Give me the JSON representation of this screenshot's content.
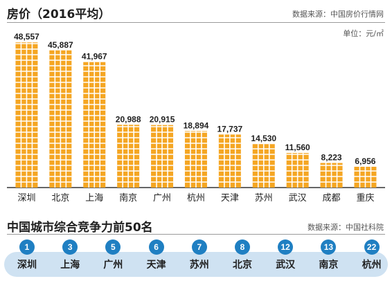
{
  "section1": {
    "title": "房价（2016平均）",
    "source": "数据来源：中国房价行情网",
    "unit": "单位：元/㎡"
  },
  "chart_data": {
    "type": "bar",
    "title": "房价（2016平均）",
    "categories": [
      "深圳",
      "北京",
      "上海",
      "南京",
      "广州",
      "杭州",
      "天津",
      "苏州",
      "武汉",
      "成都",
      "重庆"
    ],
    "values": [
      48557,
      45887,
      41967,
      20988,
      20915,
      18894,
      17737,
      14530,
      11560,
      8223,
      6956
    ],
    "value_labels": [
      "48,557",
      "45,887",
      "41,967",
      "20,988",
      "20,915",
      "18,894",
      "17,737",
      "14,530",
      "11,560",
      "8,223",
      "6,956"
    ],
    "ylim": [
      0,
      50000
    ],
    "colors": {
      "bar": "#f5a623",
      "bar_grid": "#ffffff",
      "axis": "#333333"
    }
  },
  "section2": {
    "title": "中国城市综合竞争力前50名",
    "source": "数据来源：中国社科院",
    "ranks": [
      {
        "rank": "1",
        "city": "深圳"
      },
      {
        "rank": "3",
        "city": "上海"
      },
      {
        "rank": "5",
        "city": "广州"
      },
      {
        "rank": "6",
        "city": "天津"
      },
      {
        "rank": "7",
        "city": "苏州"
      },
      {
        "rank": "8",
        "city": "北京"
      },
      {
        "rank": "12",
        "city": "武汉"
      },
      {
        "rank": "13",
        "city": "南京"
      },
      {
        "rank": "22",
        "city": "杭州"
      }
    ],
    "colors": {
      "circle": "#1f7fc2",
      "band": "#cfe2f2"
    }
  }
}
